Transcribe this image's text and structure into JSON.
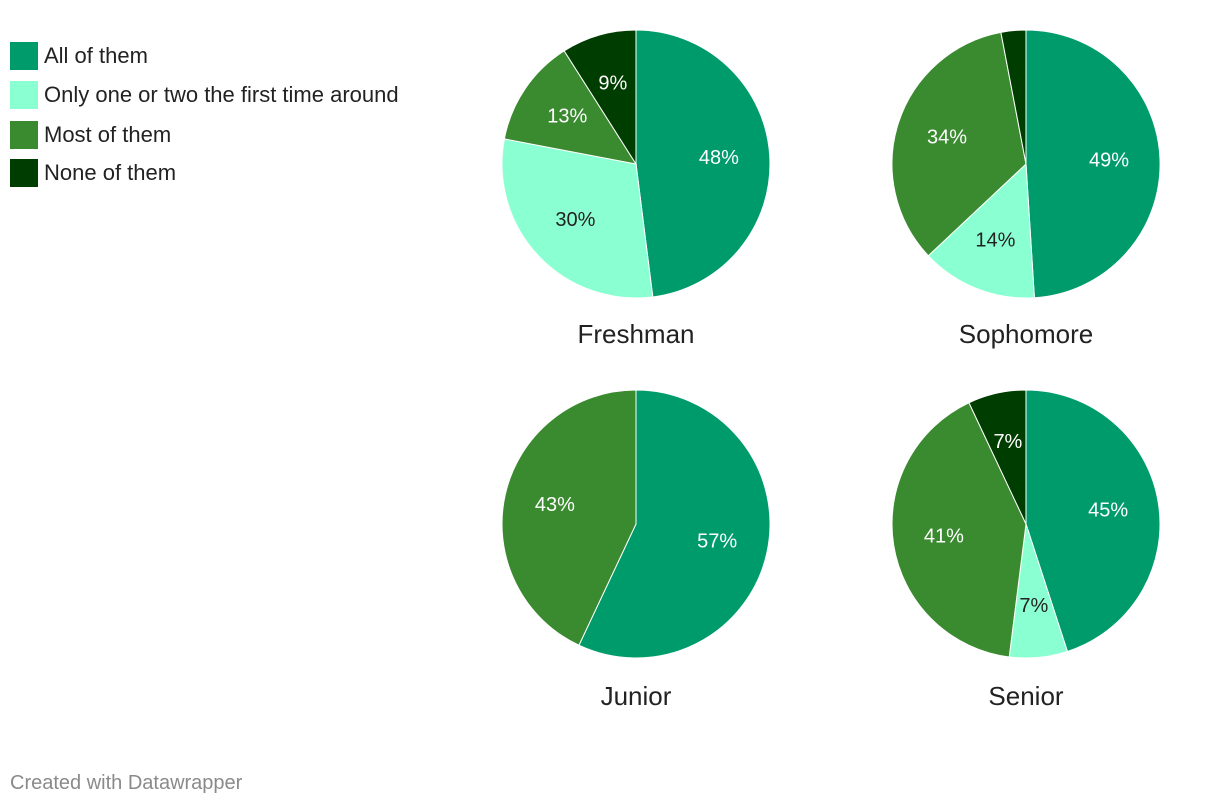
{
  "legend": [
    {
      "label": "All of them",
      "color": "#009b6b"
    },
    {
      "label": "Only one or two the first time around",
      "color": "#8affd2"
    },
    {
      "label": "Most of them",
      "color": "#3a8a2f"
    },
    {
      "label": "None of them",
      "color": "#003d00"
    }
  ],
  "credit": "Created with Datawrapper",
  "chart_data": [
    {
      "type": "pie",
      "title": "Freshman",
      "slices": [
        {
          "category": "All of them",
          "value": 48,
          "label": "48%",
          "color": "#009b6b",
          "text_color": "#ffffff"
        },
        {
          "category": "Only one or two the first time around",
          "value": 30,
          "label": "30%",
          "color": "#8affd2",
          "text_color": "#222222"
        },
        {
          "category": "Most of them",
          "value": 13,
          "label": "13%",
          "color": "#3a8a2f",
          "text_color": "#ffffff"
        },
        {
          "category": "None of them",
          "value": 9,
          "label": "9%",
          "color": "#003d00",
          "text_color": "#ffffff"
        }
      ]
    },
    {
      "type": "pie",
      "title": "Sophomore",
      "slices": [
        {
          "category": "All of them",
          "value": 49,
          "label": "49%",
          "color": "#009b6b",
          "text_color": "#ffffff"
        },
        {
          "category": "Only one or two the first time around",
          "value": 14,
          "label": "14%",
          "color": "#8affd2",
          "text_color": "#222222"
        },
        {
          "category": "Most of them",
          "value": 34,
          "label": "34%",
          "color": "#3a8a2f",
          "text_color": "#ffffff"
        },
        {
          "category": "None of them",
          "value": 3,
          "label": "",
          "color": "#003d00",
          "text_color": "#ffffff"
        }
      ]
    },
    {
      "type": "pie",
      "title": "Junior",
      "slices": [
        {
          "category": "All of them",
          "value": 57,
          "label": "57%",
          "color": "#009b6b",
          "text_color": "#ffffff"
        },
        {
          "category": "Most of them",
          "value": 43,
          "label": "43%",
          "color": "#3a8a2f",
          "text_color": "#ffffff"
        }
      ]
    },
    {
      "type": "pie",
      "title": "Senior",
      "slices": [
        {
          "category": "All of them",
          "value": 45,
          "label": "45%",
          "color": "#009b6b",
          "text_color": "#ffffff"
        },
        {
          "category": "Only one or two the first time around",
          "value": 7,
          "label": "7%",
          "color": "#8affd2",
          "text_color": "#222222"
        },
        {
          "category": "Most of them",
          "value": 41,
          "label": "41%",
          "color": "#3a8a2f",
          "text_color": "#ffffff"
        },
        {
          "category": "None of them",
          "value": 7,
          "label": "7%",
          "color": "#003d00",
          "text_color": "#ffffff"
        }
      ]
    }
  ]
}
